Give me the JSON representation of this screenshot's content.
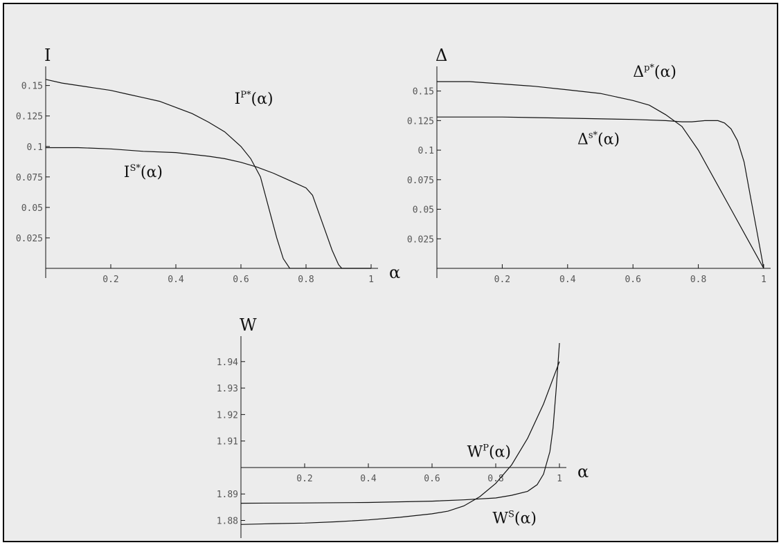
{
  "chart_data": [
    {
      "id": "I",
      "type": "line",
      "ylabel": "I",
      "xlabel": "α",
      "xlim": [
        0,
        1
      ],
      "ylim": [
        0,
        0.16
      ],
      "x_ticks": [
        {
          "v": 0.2,
          "label": "0.2"
        },
        {
          "v": 0.4,
          "label": "0.4"
        },
        {
          "v": 0.6,
          "label": "0.6"
        },
        {
          "v": 0.8,
          "label": "0.8"
        },
        {
          "v": 1.0,
          "label": "1"
        }
      ],
      "y_ticks": [
        {
          "v": 0.025,
          "label": "0.025"
        },
        {
          "v": 0.05,
          "label": "0.05"
        },
        {
          "v": 0.075,
          "label": "0.075"
        },
        {
          "v": 0.1,
          "label": "0.1"
        },
        {
          "v": 0.125,
          "label": "0.125"
        },
        {
          "v": 0.15,
          "label": "0.15"
        }
      ],
      "series": [
        {
          "label_base": "I",
          "label_sup": "P*",
          "label_arg": "(α)",
          "label_at": [
            0.58,
            0.135
          ],
          "points": [
            [
              0,
              0.155
            ],
            [
              0.05,
              0.152
            ],
            [
              0.1,
              0.15
            ],
            [
              0.15,
              0.148
            ],
            [
              0.2,
              0.146
            ],
            [
              0.25,
              0.143
            ],
            [
              0.3,
              0.14
            ],
            [
              0.35,
              0.137
            ],
            [
              0.4,
              0.132
            ],
            [
              0.45,
              0.127
            ],
            [
              0.5,
              0.12
            ],
            [
              0.55,
              0.112
            ],
            [
              0.6,
              0.1
            ],
            [
              0.63,
              0.09
            ],
            [
              0.66,
              0.075
            ],
            [
              0.69,
              0.045
            ],
            [
              0.71,
              0.025
            ],
            [
              0.73,
              0.008
            ],
            [
              0.75,
              0
            ],
            [
              0.8,
              0
            ],
            [
              0.85,
              0
            ],
            [
              0.9,
              0
            ],
            [
              0.95,
              0
            ],
            [
              1.0,
              0
            ]
          ]
        },
        {
          "label_base": "I",
          "label_sup": "S*",
          "label_arg": "(α)",
          "label_at": [
            0.24,
            0.075
          ],
          "points": [
            [
              0,
              0.099
            ],
            [
              0.1,
              0.099
            ],
            [
              0.2,
              0.098
            ],
            [
              0.3,
              0.096
            ],
            [
              0.4,
              0.095
            ],
            [
              0.5,
              0.092
            ],
            [
              0.55,
              0.09
            ],
            [
              0.6,
              0.087
            ],
            [
              0.65,
              0.083
            ],
            [
              0.7,
              0.078
            ],
            [
              0.75,
              0.072
            ],
            [
              0.8,
              0.066
            ],
            [
              0.82,
              0.06
            ],
            [
              0.84,
              0.045
            ],
            [
              0.86,
              0.03
            ],
            [
              0.88,
              0.015
            ],
            [
              0.9,
              0.003
            ],
            [
              0.91,
              0
            ],
            [
              0.95,
              0
            ],
            [
              1.0,
              0
            ]
          ]
        }
      ]
    },
    {
      "id": "Delta",
      "type": "line",
      "ylabel": "Δ",
      "xlabel": "α",
      "xlim": [
        0,
        1
      ],
      "ylim": [
        0,
        0.165
      ],
      "x_ticks": [
        {
          "v": 0.2,
          "label": "0.2"
        },
        {
          "v": 0.4,
          "label": "0.4"
        },
        {
          "v": 0.6,
          "label": "0.6"
        },
        {
          "v": 0.8,
          "label": "0.8"
        },
        {
          "v": 1.0,
          "label": "1"
        }
      ],
      "y_ticks": [
        {
          "v": 0.025,
          "label": "0.025"
        },
        {
          "v": 0.05,
          "label": "0.05"
        },
        {
          "v": 0.075,
          "label": "0.075"
        },
        {
          "v": 0.1,
          "label": "0.1"
        },
        {
          "v": 0.125,
          "label": "0.125"
        },
        {
          "v": 0.15,
          "label": "0.15"
        }
      ],
      "series": [
        {
          "label_base": "Δ",
          "label_sup": "p*",
          "label_arg": "(α)",
          "label_at": [
            0.6,
            0.162
          ],
          "points": [
            [
              0,
              0.158
            ],
            [
              0.1,
              0.158
            ],
            [
              0.2,
              0.156
            ],
            [
              0.3,
              0.154
            ],
            [
              0.4,
              0.151
            ],
            [
              0.5,
              0.148
            ],
            [
              0.6,
              0.142
            ],
            [
              0.65,
              0.138
            ],
            [
              0.7,
              0.13
            ],
            [
              0.75,
              0.12
            ],
            [
              0.8,
              0.1
            ],
            [
              0.85,
              0.075
            ],
            [
              0.9,
              0.05
            ],
            [
              0.95,
              0.025
            ],
            [
              1.0,
              0
            ]
          ]
        },
        {
          "label_base": "Δ",
          "label_sup": "s*",
          "label_arg": "(α)",
          "label_at": [
            0.43,
            0.105
          ],
          "points": [
            [
              0,
              0.128
            ],
            [
              0.2,
              0.128
            ],
            [
              0.4,
              0.127
            ],
            [
              0.6,
              0.126
            ],
            [
              0.7,
              0.125
            ],
            [
              0.75,
              0.124
            ],
            [
              0.78,
              0.124
            ],
            [
              0.82,
              0.125
            ],
            [
              0.86,
              0.125
            ],
            [
              0.88,
              0.123
            ],
            [
              0.9,
              0.118
            ],
            [
              0.92,
              0.108
            ],
            [
              0.94,
              0.09
            ],
            [
              0.96,
              0.06
            ],
            [
              0.98,
              0.03
            ],
            [
              1.0,
              0
            ]
          ]
        }
      ]
    },
    {
      "id": "W",
      "type": "line",
      "ylabel": "W",
      "xlabel": "α",
      "xlim": [
        0,
        1
      ],
      "ylim": [
        1.877,
        1.947
      ],
      "x_axis_at": 1.9,
      "x_ticks": [
        {
          "v": 0.2,
          "label": "0.2"
        },
        {
          "v": 0.4,
          "label": "0.4"
        },
        {
          "v": 0.6,
          "label": "0.6"
        },
        {
          "v": 0.8,
          "label": "0.8"
        },
        {
          "v": 1.0,
          "label": "1"
        }
      ],
      "y_ticks": [
        {
          "v": 1.88,
          "label": "1.88"
        },
        {
          "v": 1.89,
          "label": "1.89"
        },
        {
          "v": 1.91,
          "label": "1.91"
        },
        {
          "v": 1.92,
          "label": "1.92"
        },
        {
          "v": 1.93,
          "label": "1.93"
        },
        {
          "v": 1.94,
          "label": "1.94"
        }
      ],
      "series": [
        {
          "label_base": "W",
          "label_sup": "P",
          "label_arg": "(α)",
          "label_at": [
            0.71,
            1.904
          ],
          "points": [
            [
              0,
              1.8785
            ],
            [
              0.1,
              1.8788
            ],
            [
              0.2,
              1.879
            ],
            [
              0.3,
              1.8795
            ],
            [
              0.4,
              1.8802
            ],
            [
              0.5,
              1.8812
            ],
            [
              0.6,
              1.8825
            ],
            [
              0.65,
              1.8835
            ],
            [
              0.7,
              1.8855
            ],
            [
              0.75,
              1.889
            ],
            [
              0.8,
              1.894
            ],
            [
              0.85,
              1.901
            ],
            [
              0.9,
              1.911
            ],
            [
              0.95,
              1.924
            ],
            [
              1.0,
              1.94
            ]
          ]
        },
        {
          "label_base": "W",
          "label_sup": "S",
          "label_arg": "(α)",
          "label_at": [
            0.79,
            1.879
          ],
          "points": [
            [
              0,
              1.8865
            ],
            [
              0.2,
              1.8866
            ],
            [
              0.4,
              1.8868
            ],
            [
              0.6,
              1.8873
            ],
            [
              0.7,
              1.8878
            ],
            [
              0.8,
              1.8885
            ],
            [
              0.85,
              1.8895
            ],
            [
              0.9,
              1.891
            ],
            [
              0.93,
              1.8935
            ],
            [
              0.95,
              1.8975
            ],
            [
              0.97,
              1.906
            ],
            [
              0.98,
              1.915
            ],
            [
              0.99,
              1.93
            ],
            [
              1.0,
              1.947
            ]
          ]
        }
      ]
    }
  ]
}
